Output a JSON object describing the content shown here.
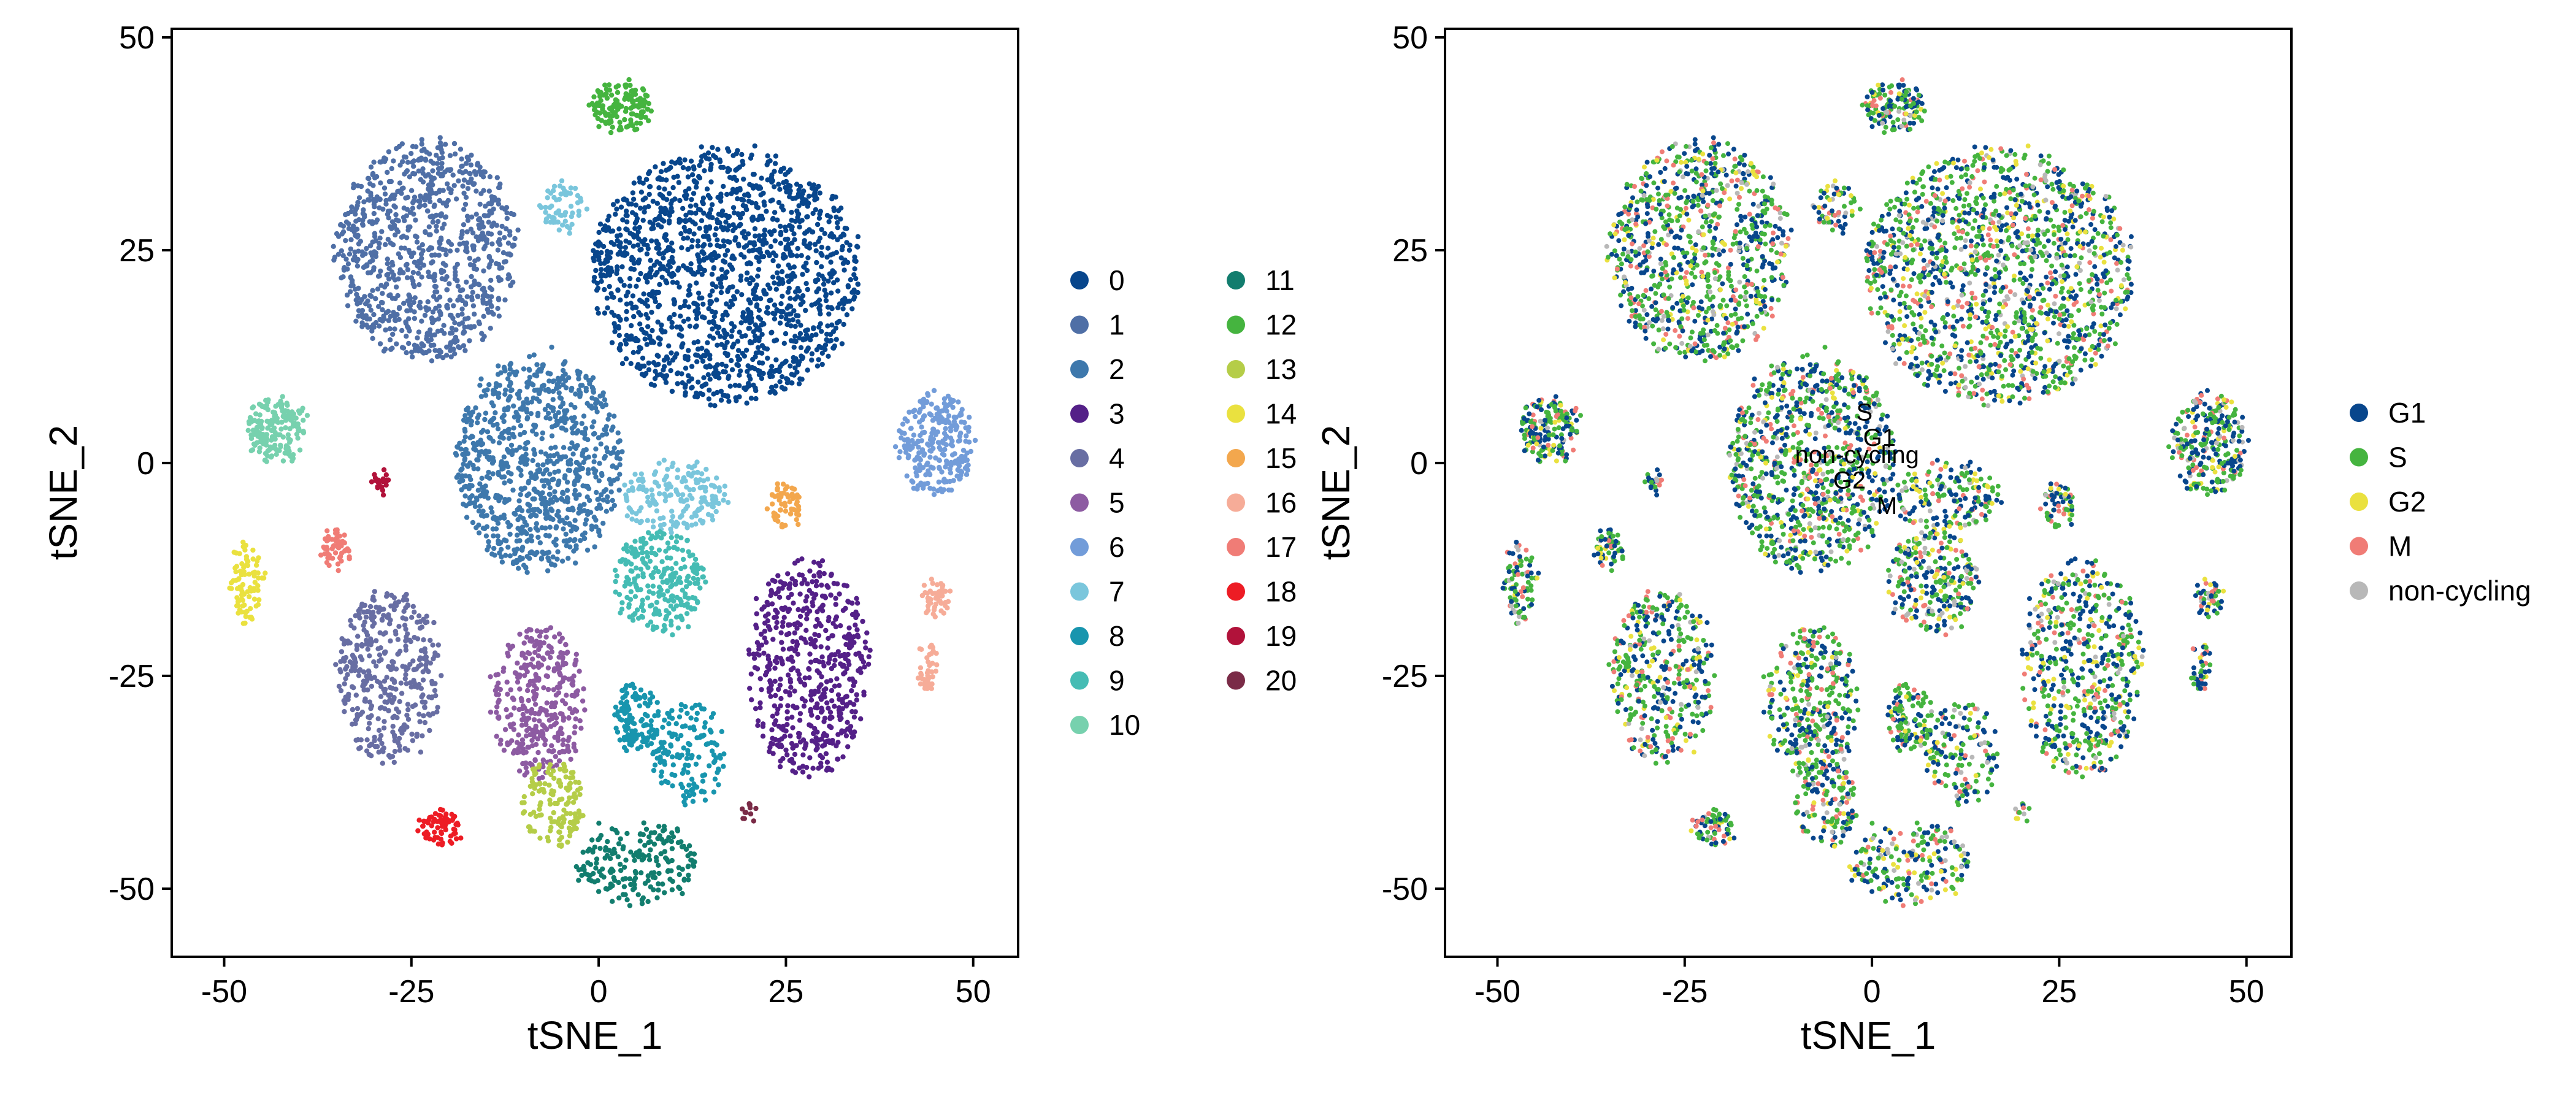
{
  "chart_data": [
    {
      "type": "scatter",
      "xlabel": "tSNE_1",
      "ylabel": "tSNE_2",
      "xlim": [
        -57,
        56
      ],
      "ylim": [
        -58,
        51
      ],
      "xticks": [
        -50,
        -25,
        0,
        25,
        50
      ],
      "yticks": [
        -50,
        -25,
        0,
        25,
        50
      ],
      "xtick_labels": [
        "-50",
        "-25",
        "0",
        "25",
        "50"
      ],
      "ytick_labels": [
        "-50",
        "-25",
        "0",
        "25",
        "50"
      ],
      "grid": false,
      "legend_position": "right",
      "legend_columns": 2,
      "series": [
        {
          "name": "0",
          "color": "#08468C",
          "clusters": [
            {
              "cx": 17,
              "cy": 22,
              "rx": 18,
              "ry": 15,
              "n": 1500
            }
          ]
        },
        {
          "name": "1",
          "color": "#4F6FA6",
          "clusters": [
            {
              "cx": -23,
              "cy": 25,
              "rx": 12,
              "ry": 13,
              "n": 900
            }
          ]
        },
        {
          "name": "2",
          "color": "#3E78AC",
          "clusters": [
            {
              "cx": -8,
              "cy": 0,
              "rx": 11,
              "ry": 13,
              "n": 900
            }
          ]
        },
        {
          "name": "3",
          "color": "#542088",
          "clusters": [
            {
              "cx": 28,
              "cy": -24,
              "rx": 8,
              "ry": 13,
              "n": 550
            }
          ]
        },
        {
          "name": "4",
          "color": "#686EA3",
          "clusters": [
            {
              "cx": -28,
              "cy": -25,
              "rx": 7,
              "ry": 10,
              "n": 400
            }
          ]
        },
        {
          "name": "5",
          "color": "#8D5BA2",
          "clusters": [
            {
              "cx": -8,
              "cy": -28,
              "rx": 6,
              "ry": 9,
              "n": 350
            }
          ]
        },
        {
          "name": "6",
          "color": "#729CD9",
          "clusters": [
            {
              "cx": 45,
              "cy": 2,
              "rx": 5,
              "ry": 6,
              "n": 260
            }
          ]
        },
        {
          "name": "7",
          "color": "#7AC6DC",
          "clusters": [
            {
              "cx": 10,
              "cy": -4,
              "rx": 7,
              "ry": 4,
              "n": 180
            },
            {
              "cx": -5,
              "cy": 30,
              "rx": 3,
              "ry": 3,
              "n": 60
            }
          ]
        },
        {
          "name": "8",
          "color": "#1895AE",
          "clusters": [
            {
              "cx": 5,
              "cy": -30,
              "rx": 3,
              "ry": 4,
              "n": 120
            },
            {
              "cx": 12,
              "cy": -34,
              "rx": 5,
              "ry": 6,
              "n": 150
            }
          ]
        },
        {
          "name": "9",
          "color": "#45BCB4",
          "clusters": [
            {
              "cx": 8,
              "cy": -14,
              "rx": 6,
              "ry": 6,
              "n": 260
            }
          ]
        },
        {
          "name": "10",
          "color": "#77D1AE",
          "clusters": [
            {
              "cx": -43,
              "cy": 4,
              "rx": 4,
              "ry": 4,
              "n": 180
            }
          ]
        },
        {
          "name": "11",
          "color": "#127D6E",
          "clusters": [
            {
              "cx": 5,
              "cy": -47,
              "rx": 8,
              "ry": 5,
              "n": 200
            }
          ]
        },
        {
          "name": "12",
          "color": "#45B43F",
          "clusters": [
            {
              "cx": 3,
              "cy": 42,
              "rx": 4,
              "ry": 3,
              "n": 140
            }
          ]
        },
        {
          "name": "13",
          "color": "#B5CD48",
          "clusters": [
            {
              "cx": -6,
              "cy": -40,
              "rx": 4,
              "ry": 5,
              "n": 140
            }
          ]
        },
        {
          "name": "14",
          "color": "#EAE13F",
          "clusters": [
            {
              "cx": -47,
              "cy": -14,
              "rx": 2,
              "ry": 5,
              "n": 90
            }
          ]
        },
        {
          "name": "15",
          "color": "#F3A74D",
          "clusters": [
            {
              "cx": 25,
              "cy": -5,
              "rx": 2,
              "ry": 3,
              "n": 60
            }
          ]
        },
        {
          "name": "16",
          "color": "#F6AC98",
          "clusters": [
            {
              "cx": 45,
              "cy": -16,
              "rx": 2,
              "ry": 2,
              "n": 50
            },
            {
              "cx": 44,
              "cy": -24,
              "rx": 1.5,
              "ry": 3,
              "n": 40
            }
          ]
        },
        {
          "name": "17",
          "color": "#F07C76",
          "clusters": [
            {
              "cx": -35,
              "cy": -10,
              "rx": 2,
              "ry": 2,
              "n": 60
            }
          ]
        },
        {
          "name": "18",
          "color": "#ED1C24",
          "clusters": [
            {
              "cx": -21,
              "cy": -43,
              "rx": 3,
              "ry": 2,
              "n": 70
            }
          ]
        },
        {
          "name": "19",
          "color": "#B1123A",
          "clusters": [
            {
              "cx": -29,
              "cy": -2,
              "rx": 1,
              "ry": 1,
              "n": 25
            }
          ]
        },
        {
          "name": "20",
          "color": "#7A2B47",
          "clusters": [
            {
              "cx": 20,
              "cy": -41,
              "rx": 1,
              "ry": 1,
              "n": 12
            }
          ]
        }
      ]
    },
    {
      "type": "scatter",
      "xlabel": "tSNE_1",
      "ylabel": "tSNE_2",
      "xlim": [
        -57,
        56
      ],
      "ylim": [
        -58,
        51
      ],
      "xticks": [
        -50,
        -25,
        0,
        25,
        50
      ],
      "yticks": [
        -50,
        -25,
        0,
        25,
        50
      ],
      "xtick_labels": [
        "-50",
        "-25",
        "0",
        "25",
        "50"
      ],
      "ytick_labels": [
        "-50",
        "-25",
        "0",
        "25",
        "50"
      ],
      "grid": false,
      "legend_position": "right",
      "legend_columns": 1,
      "series": [
        {
          "name": "G1",
          "color": "#08468C",
          "weight": 0.34
        },
        {
          "name": "S",
          "color": "#45B43F",
          "weight": 0.38
        },
        {
          "name": "G2",
          "color": "#EAE13F",
          "weight": 0.09
        },
        {
          "name": "M",
          "color": "#F07C76",
          "weight": 0.12
        },
        {
          "name": "non-cycling",
          "color": "#B8B8B8",
          "weight": 0.07
        }
      ],
      "annotations": [
        {
          "text": "S",
          "x": -1,
          "y": 5
        },
        {
          "text": "G1",
          "x": 1,
          "y": 2
        },
        {
          "text": "non-cycling",
          "x": -2,
          "y": 0
        },
        {
          "text": "G2",
          "x": -3,
          "y": -3
        },
        {
          "text": "M",
          "x": 2,
          "y": -6
        }
      ]
    }
  ]
}
